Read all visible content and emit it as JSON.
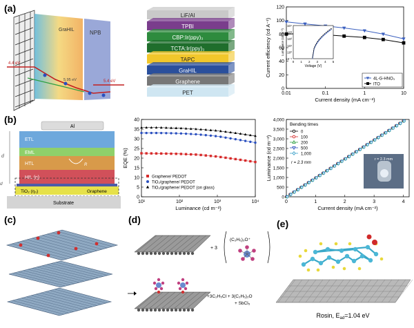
{
  "panel_labels": [
    "(a)",
    "(b)",
    "(c)",
    "(d)",
    "(e)"
  ],
  "panel_a": {
    "band_diagram": {
      "energy_left": "4.4 eV",
      "energy_mid": "5.95 eV",
      "energy_right": "5.4 eV",
      "layer_left": "GraHIL",
      "layer_right": "NPB"
    },
    "stack": [
      {
        "label": "LiF/Al",
        "color": "#c9c9c9"
      },
      {
        "label": "TPBI",
        "color": "#7a3d8c"
      },
      {
        "label": "CBP:Ir(ppy)₃",
        "color": "#2e8b3e"
      },
      {
        "label": "TCTA:Ir(ppy)₃",
        "color": "#1f6e2c"
      },
      {
        "label": "TAPC",
        "color": "#f2c72b"
      },
      {
        "label": "GraHIL",
        "color": "#2a4f9c"
      },
      {
        "label": "Graphene",
        "color": "#777777"
      },
      {
        "label": "PET",
        "color": "#cfe6f2"
      }
    ]
  },
  "panel_b": {
    "oled_layers": {
      "top": "Al",
      "etl": "ETL",
      "eml": "EML",
      "htl": "HTL",
      "rcr": "R",
      "hil": "HIL (η)",
      "tio2": "TiO₂ (η₀)",
      "graphene": "Graphene",
      "substrate": "Substrate",
      "d_org": "d",
      "d_tio2": "d"
    }
  },
  "panel_c": {},
  "panel_d": {
    "ion_label": "(C₂H₅)₃O⁺",
    "plus_three": "+ 3",
    "products_line1": "+3C₂H₅Cl + 3(C₂H₅)₂O",
    "products_line2": "+ SbCl₅"
  },
  "panel_e": {
    "caption": "Rosin, E",
    "caption_sub": "ad",
    "caption_value": "=1.04 eV"
  },
  "chart_data": [
    {
      "type": "line",
      "panel": "(a)",
      "xlabel": "Current density (mA cm⁻²)",
      "ylabel": "Current efficiency (cd A⁻¹)",
      "xscale": "log",
      "xlim": [
        0.01,
        10
      ],
      "ylim": [
        0,
        120
      ],
      "xticks": [
        "0.01",
        "0.1",
        "1",
        "10"
      ],
      "yticks": [
        "0",
        "20",
        "40",
        "60",
        "80",
        "100",
        "120"
      ],
      "legend_position": "bottom-right",
      "series": [
        {
          "name": "4L-G-HNO₃",
          "marker": "triangle-down",
          "color": "#3a5fbf",
          "x": [
            0.01,
            0.03,
            0.1,
            0.3,
            1,
            3,
            10
          ],
          "y": [
            98,
            95,
            92,
            89,
            85,
            80,
            73
          ]
        },
        {
          "name": "ITO",
          "marker": "square",
          "color": "#000000",
          "x": [
            0.01,
            0.03,
            0.1,
            0.3,
            1,
            3,
            10
          ],
          "y": [
            80,
            81,
            79,
            77,
            75,
            72,
            67
          ]
        }
      ],
      "inset": {
        "xlabel": "Voltage (V)",
        "ylabel": "Luminance (cd m⁻²)",
        "xticks": [
          "0",
          "1",
          "2",
          "3",
          "4",
          "5"
        ],
        "yticks": [
          "10⁻¹",
          "10⁰",
          "10¹",
          "10²",
          "10³",
          "10⁴"
        ]
      }
    },
    {
      "type": "line",
      "panel": "(b) middle",
      "xlabel": "Luminance (cd m⁻²)",
      "ylabel": "EQE (%)",
      "xscale": "log",
      "xlim": [
        10,
        10000
      ],
      "ylim": [
        0,
        40
      ],
      "xticks": [
        "10¹",
        "10²",
        "10³",
        "10⁴"
      ],
      "yticks": [
        "0",
        "5",
        "10",
        "15",
        "20",
        "25",
        "30",
        "35",
        "40"
      ],
      "legend_position": "bottom-left",
      "series": [
        {
          "name": "Graphene/ PEDOT",
          "marker": "square",
          "color": "#d62a2a",
          "x": [
            10,
            30,
            100,
            300,
            1000,
            3000,
            10000
          ],
          "y": [
            22.5,
            22.4,
            22.2,
            21.8,
            20.8,
            19.5,
            18.0
          ]
        },
        {
          "name": "TiO₂/graphene/ PEDOT",
          "marker": "circle",
          "color": "#2a4fbf",
          "x": [
            10,
            30,
            100,
            300,
            1000,
            3000,
            10000
          ],
          "y": [
            33.0,
            33.0,
            32.8,
            32.3,
            31.3,
            29.8,
            28.0
          ]
        },
        {
          "name": "TiO₂/graphene/ PEDOT (on glass)",
          "marker": "triangle-up",
          "color": "#000000",
          "x": [
            10,
            30,
            100,
            300,
            1000,
            3000,
            10000
          ],
          "y": [
            35.8,
            35.8,
            35.5,
            35.0,
            34.2,
            33.0,
            31.5
          ]
        }
      ]
    },
    {
      "type": "line",
      "panel": "(b) right",
      "xlabel": "Current density (mA cm⁻²)",
      "ylabel": "Luminance (cd m⁻²)",
      "xlim": [
        0,
        4.2
      ],
      "ylim": [
        0,
        4000
      ],
      "xticks": [
        "0",
        "1",
        "2",
        "3",
        "4"
      ],
      "yticks": [
        "0",
        "500",
        "1,000",
        "1,500",
        "2,000",
        "2,500",
        "3,000",
        "3,500",
        "4,000"
      ],
      "legend_title": "Bending times",
      "legend_position": "top-left",
      "annotation": "r = 2.3 mm",
      "inset_annotation": "r = 2.3 mm",
      "series": [
        {
          "name": "0",
          "marker": "circle",
          "color": "#000000"
        },
        {
          "name": "100",
          "marker": "circle",
          "color": "#d62a2a"
        },
        {
          "name": "200",
          "marker": "triangle-up",
          "color": "#2ea043"
        },
        {
          "name": "500",
          "marker": "triangle-down",
          "color": "#2a4fbf"
        },
        {
          "name": "1,000",
          "marker": "diamond",
          "color": "#3aa0c9"
        }
      ],
      "x": [
        0,
        0.5,
        1.0,
        1.5,
        2.0,
        2.5,
        3.0,
        3.5,
        4.0
      ],
      "y": [
        0,
        490,
        980,
        1470,
        1960,
        2450,
        2940,
        3430,
        3920
      ]
    }
  ]
}
